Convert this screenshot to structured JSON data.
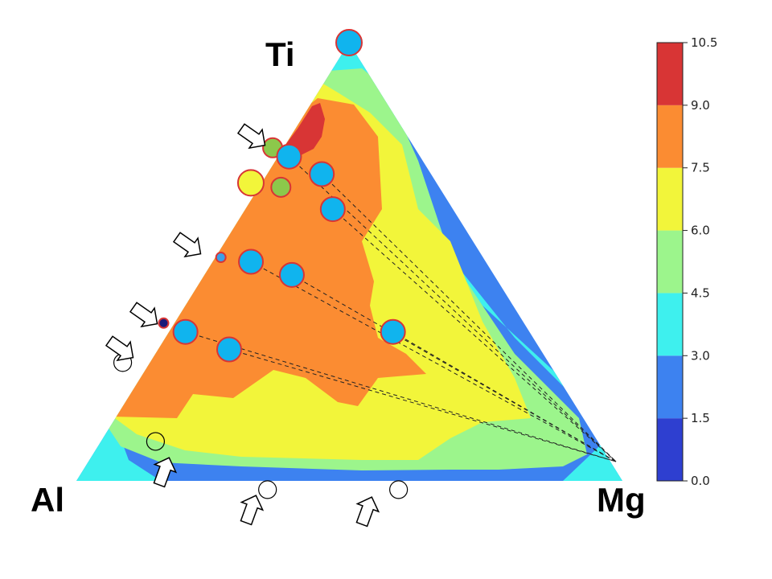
{
  "chart_data": {
    "type": "ternary-contour",
    "vertex_labels": {
      "top": "Ti",
      "left": "Al",
      "right": "Mg"
    },
    "colorbar": {
      "ticks": [
        "0.0",
        "1.5",
        "3.0",
        "4.5",
        "6.0",
        "7.5",
        "9.0",
        "10.5"
      ],
      "levels": [
        {
          "range": [
            0.0,
            1.5
          ],
          "color": "#2e3fd0"
        },
        {
          "range": [
            1.5,
            3.0
          ],
          "color": "#3d82f0"
        },
        {
          "range": [
            3.0,
            4.5
          ],
          "color": "#3ef0ee"
        },
        {
          "range": [
            4.5,
            6.0
          ],
          "color": "#9cf58c"
        },
        {
          "range": [
            6.0,
            7.5
          ],
          "color": "#f2f53a"
        },
        {
          "range": [
            7.5,
            9.0
          ],
          "color": "#fb8c32"
        },
        {
          "range": [
            9.0,
            10.5
          ],
          "color": "#d83535"
        }
      ]
    },
    "tie_lines_to": "Mg",
    "blue_points": [
      {
        "Al": 0.0,
        "Ti": 1.0,
        "Mg": 0.0
      },
      {
        "Al": 0.24,
        "Ti": 0.74,
        "Mg": 0.02
      },
      {
        "Al": 0.2,
        "Ti": 0.7,
        "Mg": 0.1
      },
      {
        "Al": 0.22,
        "Ti": 0.62,
        "Mg": 0.16
      },
      {
        "Al": 0.43,
        "Ti": 0.5,
        "Mg": 0.07
      },
      {
        "Al": 0.37,
        "Ti": 0.47,
        "Mg": 0.16
      },
      {
        "Al": 0.25,
        "Ti": 0.34,
        "Mg": 0.41
      },
      {
        "Al": 0.63,
        "Ti": 0.34,
        "Mg": 0.03
      },
      {
        "Al": 0.57,
        "Ti": 0.3,
        "Mg": 0.13
      }
    ],
    "green_points": [
      {
        "Al": 0.26,
        "Ti": 0.76,
        "Mg": -0.02
      },
      {
        "Al": 0.29,
        "Ti": 0.67,
        "Mg": 0.04
      }
    ],
    "yellow_points": [
      {
        "Al": 0.34,
        "Ti": 0.68,
        "Mg": -0.02
      }
    ],
    "small_markers": [
      {
        "Al": 0.48,
        "Ti": 0.51,
        "Mg": 0.01,
        "color": "#3aa0e8"
      },
      {
        "Al": 0.66,
        "Ti": 0.36,
        "Mg": -0.02,
        "color": "#1a1a7a"
      }
    ],
    "open_circles": [
      {
        "Al": 0.78,
        "Ti": 0.27,
        "Mg": -0.05
      },
      {
        "Al": 0.81,
        "Ti": 0.09,
        "Mg": 0.1
      },
      {
        "Al": 0.66,
        "Ti": -0.02,
        "Mg": 0.36
      },
      {
        "Al": 0.42,
        "Ti": -0.02,
        "Mg": 0.6
      }
    ],
    "arrow_markers": 7
  }
}
